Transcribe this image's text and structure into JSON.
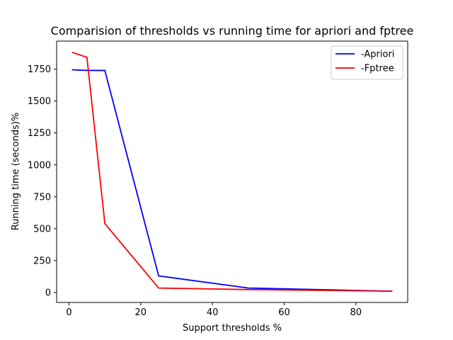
{
  "chart_data": {
    "type": "line",
    "title": "Comparision of thresholds vs running time for apriori and fptree",
    "xlabel": "Support thresholds %",
    "ylabel": "Running time (seconds)%",
    "xlim": [
      -3.45,
      94.45
    ],
    "ylim": [
      -78,
      1970
    ],
    "xticks": [
      0,
      20,
      40,
      60,
      80
    ],
    "yticks": [
      0,
      250,
      500,
      750,
      1000,
      1250,
      1500,
      1750
    ],
    "grid": false,
    "legend_position": "top-right",
    "series": [
      {
        "name": "-Apriori",
        "color": "#0000ff",
        "x": [
          1,
          5,
          10,
          25,
          50,
          90
        ],
        "y": [
          1745,
          1740,
          1740,
          130,
          35,
          10
        ]
      },
      {
        "name": "-Fptree",
        "color": "#ff0000",
        "x": [
          1,
          5,
          10,
          25,
          50,
          90
        ],
        "y": [
          1880,
          1843,
          540,
          35,
          23,
          10
        ]
      }
    ]
  }
}
